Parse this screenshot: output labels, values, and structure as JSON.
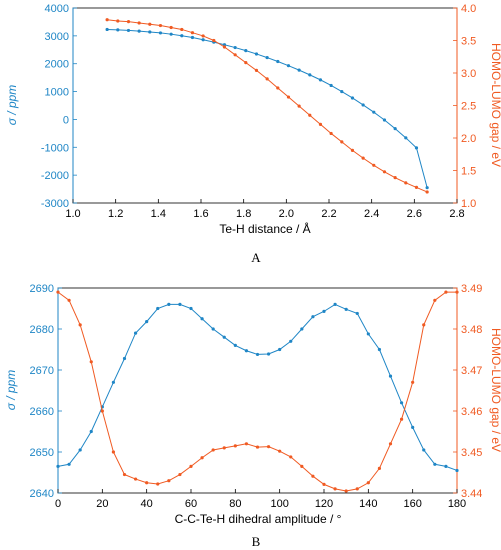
{
  "colors": {
    "blue": "#1f86c6",
    "orange": "#f05a22",
    "axis": "#000000"
  },
  "chart_data": [
    {
      "type": "line",
      "panel_label": "A",
      "xlabel": "Te-H distance / Å",
      "ylabel_left": "σ / ppm",
      "ylabel_right": "HOMO-LUMO gap / eV",
      "xlim": [
        1.0,
        2.8
      ],
      "ylim_left": [
        -3000,
        4000
      ],
      "ylim_right": [
        1.0,
        4.0
      ],
      "x_ticks": [
        "1.0",
        "1.2",
        "1.4",
        "1.6",
        "1.8",
        "2.0",
        "2.2",
        "2.4",
        "2.6",
        "2.8"
      ],
      "y_left_ticks": [
        "-3000",
        "-2000",
        "-1000",
        "0",
        "1000",
        "2000",
        "3000",
        "4000"
      ],
      "y_right_ticks": [
        "1.0",
        "1.5",
        "2.0",
        "2.5",
        "3.0",
        "3.5",
        "4.0"
      ],
      "series": [
        {
          "axis": "left",
          "color": "#1f86c6",
          "x": [
            1.16,
            1.21,
            1.26,
            1.31,
            1.36,
            1.41,
            1.46,
            1.51,
            1.56,
            1.61,
            1.66,
            1.71,
            1.76,
            1.81,
            1.86,
            1.91,
            1.96,
            2.01,
            2.06,
            2.11,
            2.16,
            2.21,
            2.26,
            2.31,
            2.36,
            2.41,
            2.46,
            2.51,
            2.56,
            2.61,
            2.66
          ],
          "y": [
            3230,
            3215,
            3195,
            3170,
            3140,
            3105,
            3060,
            3005,
            2940,
            2860,
            2775,
            2680,
            2580,
            2470,
            2350,
            2220,
            2080,
            1930,
            1770,
            1600,
            1420,
            1220,
            1000,
            770,
            520,
            260,
            -20,
            -330,
            -660,
            -1020,
            -2450
          ]
        },
        {
          "axis": "right",
          "color": "#f05a22",
          "x": [
            1.16,
            1.21,
            1.26,
            1.31,
            1.36,
            1.41,
            1.46,
            1.51,
            1.56,
            1.61,
            1.66,
            1.71,
            1.76,
            1.81,
            1.86,
            1.91,
            1.96,
            2.01,
            2.06,
            2.11,
            2.16,
            2.21,
            2.26,
            2.31,
            2.36,
            2.41,
            2.46,
            2.51,
            2.56,
            2.61,
            2.66
          ],
          "y": [
            3.82,
            3.8,
            3.79,
            3.77,
            3.75,
            3.73,
            3.7,
            3.67,
            3.62,
            3.57,
            3.5,
            3.4,
            3.28,
            3.16,
            3.04,
            2.91,
            2.77,
            2.63,
            2.49,
            2.35,
            2.21,
            2.07,
            1.94,
            1.81,
            1.69,
            1.58,
            1.48,
            1.39,
            1.31,
            1.24,
            1.17
          ]
        }
      ]
    },
    {
      "type": "line",
      "panel_label": "B",
      "xlabel": "C-C-Te-H dihedral amplitude / °",
      "ylabel_left": "σ / ppm",
      "ylabel_right": "HOMO-LUMO gap / eV",
      "xlim": [
        0,
        180
      ],
      "ylim_left": [
        2640,
        2690
      ],
      "ylim_right": [
        3.44,
        3.49
      ],
      "x_ticks": [
        "0",
        "20",
        "40",
        "60",
        "80",
        "100",
        "120",
        "140",
        "160",
        "180"
      ],
      "y_left_ticks": [
        "2640",
        "2650",
        "2660",
        "2670",
        "2680",
        "2690"
      ],
      "y_right_ticks": [
        "3.44",
        "3.45",
        "3.46",
        "3.47",
        "3.48",
        "3.49"
      ],
      "series": [
        {
          "axis": "left",
          "color": "#1f86c6",
          "x": [
            0,
            5,
            10,
            15,
            20,
            25,
            30,
            35,
            40,
            45,
            50,
            55,
            60,
            65,
            70,
            75,
            80,
            85,
            90,
            95,
            100,
            105,
            110,
            115,
            120,
            125,
            130,
            135,
            140,
            145,
            150,
            155,
            160,
            165,
            170,
            175,
            180
          ],
          "y": [
            2646.5,
            2647,
            2650.5,
            2655,
            2661,
            2667,
            2672.8,
            2679,
            2681.8,
            2685,
            2686,
            2686,
            2685,
            2682.5,
            2680,
            2678,
            2676,
            2674.7,
            2673.8,
            2673.9,
            2675,
            2677,
            2680,
            2683,
            2684.3,
            2686,
            2684.8,
            2683.8,
            2678.8,
            2675,
            2668.5,
            2662,
            2656,
            2650.5,
            2647,
            2646.5,
            2645.5
          ]
        },
        {
          "axis": "right",
          "color": "#f05a22",
          "x": [
            0,
            5,
            10,
            15,
            20,
            25,
            30,
            35,
            40,
            45,
            50,
            55,
            60,
            65,
            70,
            75,
            80,
            85,
            90,
            95,
            100,
            105,
            110,
            115,
            120,
            125,
            130,
            135,
            140,
            145,
            150,
            155,
            160,
            165,
            170,
            175,
            180
          ],
          "y": [
            3.489,
            3.487,
            3.481,
            3.472,
            3.46,
            3.45,
            3.4445,
            3.4434,
            3.4425,
            3.4422,
            3.443,
            3.4445,
            3.4465,
            3.4486,
            3.4505,
            3.451,
            3.4515,
            3.452,
            3.4512,
            3.4513,
            3.4502,
            3.4488,
            3.4465,
            3.4441,
            3.4421,
            3.441,
            3.4405,
            3.441,
            3.4425,
            3.446,
            3.452,
            3.458,
            3.467,
            3.481,
            3.487,
            3.489,
            3.489
          ]
        }
      ]
    }
  ]
}
